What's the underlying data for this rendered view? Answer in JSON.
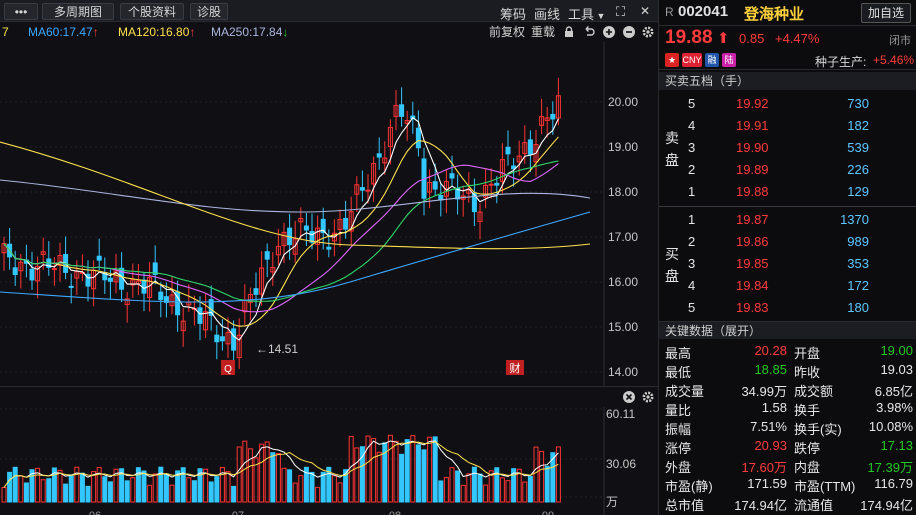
{
  "toolbar": {
    "multi_chart": "多周期图",
    "stock_info": "个股资料",
    "diagnose": "诊股",
    "chips": "筹码",
    "draw": "画线",
    "tools": "工具"
  },
  "ma_bar": {
    "ma_left": "7",
    "ma60": "MA60:17.47",
    "ma120": "MA120:16.80",
    "ma250": "MA250:17.84",
    "fq": "前复权",
    "overlay": "重载",
    "colors": {
      "ma60": "#3ea8ff",
      "ma120": "#ffe14d",
      "ma250": "#aab6e0"
    }
  },
  "price_axis": [
    "20.00",
    "19.00",
    "18.00",
    "17.00",
    "16.00",
    "15.00",
    "14.00"
  ],
  "vol_axis": [
    "60.11",
    "30.06",
    "万"
  ],
  "low_mark": "←14.51",
  "markers": {
    "q": "Q",
    "cai": "财"
  },
  "x_months": [
    "06",
    "07",
    "08",
    "09"
  ],
  "stock": {
    "r": "R",
    "code": "002041",
    "name": "登海种业",
    "price": "19.88",
    "change": "0.85",
    "pct": "+4.47%",
    "status": "闭市",
    "add_btn": "加自选"
  },
  "tags": [
    {
      "t": "CNY",
      "c": "#d23"
    },
    {
      "t": "融",
      "c": "#25a"
    },
    {
      "t": "陆",
      "c": "#c2a"
    }
  ],
  "industry": {
    "name": "种子生产:",
    "pct": "+5.46%"
  },
  "order_book": {
    "title": "买卖五档（手）",
    "sell_label": [
      "卖",
      "盘"
    ],
    "buy_label": [
      "买",
      "盘"
    ],
    "sell": [
      {
        "lvl": "5",
        "price": "19.92",
        "vol": "730"
      },
      {
        "lvl": "4",
        "price": "19.91",
        "vol": "182"
      },
      {
        "lvl": "3",
        "price": "19.90",
        "vol": "539"
      },
      {
        "lvl": "2",
        "price": "19.89",
        "vol": "226"
      },
      {
        "lvl": "1",
        "price": "19.88",
        "vol": "129"
      }
    ],
    "buy": [
      {
        "lvl": "1",
        "price": "19.87",
        "vol": "1370"
      },
      {
        "lvl": "2",
        "price": "19.86",
        "vol": "989"
      },
      {
        "lvl": "3",
        "price": "19.85",
        "vol": "353"
      },
      {
        "lvl": "4",
        "price": "19.84",
        "vol": "172"
      },
      {
        "lvl": "5",
        "price": "19.83",
        "vol": "180"
      }
    ]
  },
  "key_data": {
    "title": "关键数据（展开）",
    "rows": [
      {
        "l1": "最高",
        "v1": "20.28",
        "c1": "red",
        "l2": "开盘",
        "v2": "19.00",
        "c2": "green"
      },
      {
        "l1": "最低",
        "v1": "18.85",
        "c1": "green",
        "l2": "昨收",
        "v2": "19.03",
        "c2": "white"
      },
      {
        "l1": "成交量",
        "v1": "34.99万",
        "c1": "white",
        "l2": "成交额",
        "v2": "6.85亿",
        "c2": "white"
      },
      {
        "l1": "量比",
        "v1": "1.58",
        "c1": "white",
        "l2": "换手",
        "v2": "3.98%",
        "c2": "white"
      },
      {
        "l1": "振幅",
        "v1": "7.51%",
        "c1": "white",
        "l2": "换手(实)",
        "v2": "10.08%",
        "c2": "white"
      },
      {
        "l1": "涨停",
        "v1": "20.93",
        "c1": "red",
        "l2": "跌停",
        "v2": "17.13",
        "c2": "green"
      },
      {
        "l1": "外盘",
        "v1": "17.60万",
        "c1": "red",
        "l2": "内盘",
        "v2": "17.39万",
        "c2": "green"
      },
      {
        "l1": "市盈(静)",
        "v1": "171.59",
        "c1": "white",
        "l2": "市盈(TTM)",
        "v2": "116.79",
        "c2": "white"
      },
      {
        "l1": "总市值",
        "v1": "174.94亿",
        "c1": "white",
        "l2": "流通值",
        "v2": "174.94亿",
        "c2": "white"
      }
    ]
  }
}
